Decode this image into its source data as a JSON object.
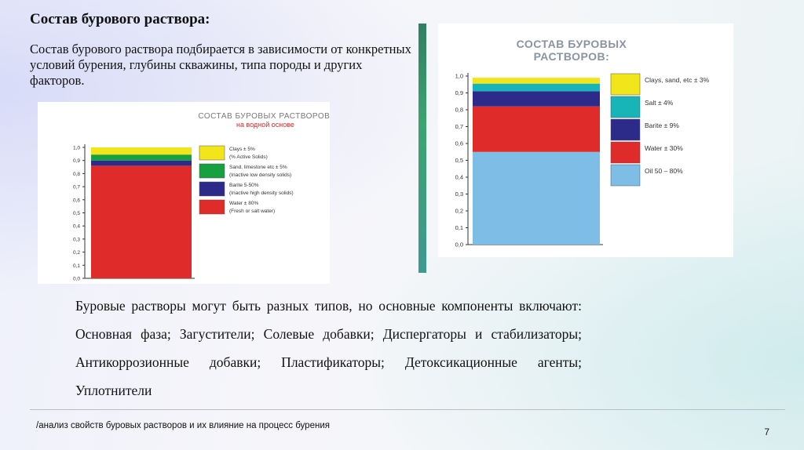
{
  "title": "Состав бурового раствора:",
  "intro": "Состав бурового раствора подбирается в зависимости от конкретных условий бурения, глубины скважины, типа породы и других факторов.",
  "body": "Буровые растворы могут быть разных типов, но основные компоненты включают: Основная фаза; Загустители; Солевые добавки; Диспергаторы и стабилизаторы; Антикоррозионные добавки; Пластификаторы; Детоксикационные агенты; Уплотнители",
  "footer": "/анализ свойств буровых растворов и их влияние на процесс бурения",
  "page_number": "7",
  "chart_data": [
    {
      "type": "bar",
      "title": "СОСТАВ БУРОВЫХ РАСТВОРОВ:",
      "subtitle": "на водной основе",
      "ylim": [
        0,
        1
      ],
      "yticks": [
        "0,0",
        "0,1",
        "0,2",
        "0,3",
        "0,4",
        "0,5",
        "0,6",
        "0,7",
        "0,8",
        "0,9",
        "1,0"
      ],
      "stack": [
        {
          "name": "Water ± 80%",
          "note": "(Fresh or salt water)",
          "value": 0.86,
          "color": "#e02b2b"
        },
        {
          "name": "Barite 5-50%",
          "note": "(Inactive high density solids)",
          "value": 0.04,
          "color": "#2d2b8a"
        },
        {
          "name": "Sand, limestone etc ± 5%",
          "note": "(Inactive low density solids)",
          "value": 0.045,
          "color": "#16a040"
        },
        {
          "name": "Clays ± 5%",
          "note": "(% Active Solids)",
          "value": 0.055,
          "color": "#f2e51a"
        }
      ],
      "legend_order": [
        3,
        2,
        1,
        0
      ]
    },
    {
      "type": "bar",
      "title": "СОСТАВ БУРОВЫХ РАСТВОРОВ:",
      "ylim": [
        0,
        1
      ],
      "yticks": [
        "0,0",
        "0,1",
        "0,2",
        "0,3",
        "0,4",
        "0,5",
        "0,6",
        "0,7",
        "0,8",
        "0,9",
        "1,0"
      ],
      "stack": [
        {
          "name": "Oil 50 – 80%",
          "value": 0.55,
          "color": "#7dbde6"
        },
        {
          "name": "Water ± 30%",
          "value": 0.27,
          "color": "#e02b2b"
        },
        {
          "name": "Barite ± 9%",
          "value": 0.09,
          "color": "#2d2b8a"
        },
        {
          "name": "Salt ± 4%",
          "value": 0.045,
          "color": "#17b5b8"
        },
        {
          "name": "Clays, sand, etc ± 3%",
          "value": 0.035,
          "color": "#f2e51a"
        }
      ],
      "legend_order": [
        4,
        3,
        2,
        1,
        0
      ]
    }
  ]
}
